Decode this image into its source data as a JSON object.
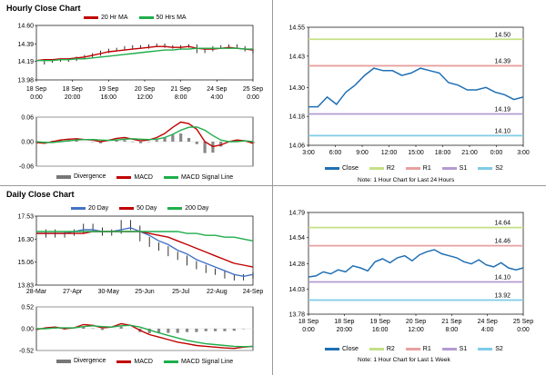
{
  "sections": {
    "hourly_title": "Hourly Close Chart",
    "daily_title": "Daily Close Chart"
  },
  "chart_data": [
    {
      "id": "hourly_price",
      "type": "line",
      "legend": [
        "20 Hr MA",
        "50 Hrs MA"
      ],
      "yticks": [
        "14.60",
        "14.39",
        "14.19",
        "13.98"
      ],
      "ylim": [
        13.98,
        14.6
      ],
      "xticks": [
        [
          "18 Sep",
          "0:00"
        ],
        [
          "18 Sep",
          "20:00"
        ],
        [
          "19 Sep",
          "16:00"
        ],
        [
          "20 Sep",
          "12:00"
        ],
        [
          "21 Sep",
          "8:00"
        ],
        [
          "24 Sep",
          "4:00"
        ],
        [
          "25 Sep",
          "0:00"
        ]
      ],
      "x": [
        0,
        6,
        12,
        18,
        24,
        30,
        36,
        42,
        48,
        54,
        60,
        66,
        72,
        78,
        84,
        90,
        96,
        102,
        108,
        114,
        120,
        126,
        132,
        138,
        144,
        150,
        156,
        162
      ],
      "series": [
        {
          "name": "Close",
          "color": "#000000",
          "values": [
            14.17,
            14.19,
            14.2,
            14.2,
            14.21,
            14.23,
            14.25,
            14.27,
            14.3,
            14.32,
            14.33,
            14.35,
            14.36,
            14.35,
            14.37,
            14.38,
            14.36,
            14.35,
            14.36,
            14.37,
            14.3,
            14.32,
            14.35,
            14.36,
            14.37,
            14.35,
            14.32,
            14.3
          ]
        },
        {
          "name": "20 Hr MA",
          "color": "#c00000",
          "values": [
            14.2,
            14.21,
            14.21,
            14.22,
            14.22,
            14.23,
            14.24,
            14.26,
            14.28,
            14.3,
            14.31,
            14.32,
            14.33,
            14.34,
            14.35,
            14.36,
            14.36,
            14.35,
            14.35,
            14.36,
            14.34,
            14.33,
            14.33,
            14.34,
            14.35,
            14.34,
            14.33,
            14.32
          ]
        },
        {
          "name": "50 Hrs MA",
          "color": "#1fae4b",
          "values": [
            14.2,
            14.2,
            14.2,
            14.21,
            14.21,
            14.22,
            14.22,
            14.23,
            14.24,
            14.25,
            14.26,
            14.27,
            14.28,
            14.29,
            14.3,
            14.31,
            14.32,
            14.32,
            14.33,
            14.33,
            14.34,
            14.34,
            14.34,
            14.34,
            14.34,
            14.34,
            14.33,
            14.33
          ]
        }
      ]
    },
    {
      "id": "hourly_macd",
      "type": "line",
      "legend": [
        "Divergence",
        "MACD",
        "MACD Signal Line"
      ],
      "yticks": [
        "0.06",
        "0.00",
        "-0.06"
      ],
      "ylim": [
        -0.06,
        0.06
      ],
      "x": [
        0,
        6,
        12,
        18,
        24,
        30,
        36,
        42,
        48,
        54,
        60,
        66,
        72,
        78,
        84,
        90,
        96,
        102,
        108,
        114,
        120,
        126,
        132,
        138,
        144,
        150,
        156,
        162
      ],
      "series": [
        {
          "name": "MACD",
          "color": "#c00000",
          "values": [
            -0.002,
            -0.004,
            0.0,
            0.004,
            0.006,
            0.007,
            0.005,
            0.004,
            0.0,
            0.003,
            0.008,
            0.01,
            0.006,
            0.002,
            0.004,
            0.01,
            0.02,
            0.035,
            0.048,
            0.044,
            0.03,
            0.0,
            -0.012,
            -0.008,
            0.0,
            0.004,
            0.002,
            -0.004
          ]
        },
        {
          "name": "MACD Signal Line",
          "color": "#1fae4b",
          "values": [
            0.0,
            -0.002,
            -0.002,
            0.0,
            0.002,
            0.004,
            0.005,
            0.005,
            0.004,
            0.003,
            0.004,
            0.006,
            0.007,
            0.006,
            0.005,
            0.006,
            0.01,
            0.018,
            0.028,
            0.035,
            0.036,
            0.028,
            0.015,
            0.004,
            0.0,
            0.0,
            0.002,
            0.0
          ]
        }
      ],
      "divergence": [
        -0.002,
        -0.002,
        0.002,
        0.004,
        0.004,
        0.003,
        0.0,
        -0.001,
        -0.004,
        0.0,
        0.004,
        0.004,
        -0.001,
        -0.004,
        -0.001,
        0.004,
        0.01,
        0.017,
        0.02,
        0.009,
        -0.006,
        -0.028,
        -0.027,
        -0.012,
        0.0,
        0.004,
        0.0,
        -0.004
      ]
    },
    {
      "id": "hourly_pivot",
      "type": "line",
      "yticks": [
        "14.55",
        "14.43",
        "14.30",
        "14.18",
        "14.06"
      ],
      "ylim": [
        14.06,
        14.55
      ],
      "xticks": [
        "3:00",
        "6:00",
        "9:00",
        "12:00",
        "15:00",
        "18:00",
        "21:00",
        "0:00",
        "3:00"
      ],
      "series": [
        {
          "name": "Close",
          "color": "#1f6fb4",
          "values": [
            14.22,
            14.22,
            14.26,
            14.23,
            14.28,
            14.31,
            14.35,
            14.38,
            14.37,
            14.37,
            14.35,
            14.36,
            14.38,
            14.37,
            14.36,
            14.32,
            14.31,
            14.29,
            14.29,
            14.3,
            14.28,
            14.27,
            14.25,
            14.26
          ]
        }
      ],
      "levels": [
        {
          "name": "R2",
          "value": 14.5,
          "label": "14.50",
          "color": "#c5e085"
        },
        {
          "name": "R1",
          "value": 14.39,
          "label": "14.39",
          "color": "#e9a0a0"
        },
        {
          "name": "S1",
          "value": 14.19,
          "label": "14.19",
          "color": "#b39bd0"
        },
        {
          "name": "S2",
          "value": 14.1,
          "label": "14.10",
          "color": "#7fcbe6"
        }
      ],
      "legend": [
        "Close",
        "R2",
        "R1",
        "S1",
        "S2"
      ],
      "note": "Note: 1 Hour Chart for Last 24 Hours"
    },
    {
      "id": "daily_price",
      "type": "line",
      "legend": [
        "20 Day",
        "50 Day",
        "200 Day"
      ],
      "yticks": [
        "17.53",
        "16.30",
        "15.06",
        "13.83"
      ],
      "ylim": [
        13.83,
        17.53
      ],
      "xticks": [
        "28-Mar",
        "27-Apr",
        "30-May",
        "25-Jun",
        "25-Jul",
        "22-Aug",
        "24-Sep"
      ],
      "x": [
        0,
        6,
        12,
        18,
        24,
        30,
        36,
        42,
        48,
        54,
        60,
        66,
        72,
        78,
        84,
        90,
        96,
        102,
        108,
        114,
        120,
        126,
        132,
        138
      ],
      "series": [
        {
          "name": "Close",
          "color": "#000000",
          "values": [
            16.5,
            16.7,
            16.5,
            16.6,
            16.7,
            17.0,
            16.8,
            16.6,
            16.7,
            17.2,
            16.9,
            16.3,
            16.0,
            15.8,
            15.5,
            15.3,
            15.0,
            14.8,
            14.6,
            14.5,
            14.3,
            14.2,
            14.3,
            14.4
          ]
        },
        {
          "name": "20 Day",
          "color": "#4472c4",
          "values": [
            16.6,
            16.6,
            16.6,
            16.6,
            16.7,
            16.8,
            16.8,
            16.7,
            16.7,
            16.8,
            16.9,
            16.7,
            16.5,
            16.2,
            16.0,
            15.7,
            15.5,
            15.2,
            15.0,
            14.8,
            14.6,
            14.4,
            14.3,
            14.4
          ]
        },
        {
          "name": "50 Day",
          "color": "#c00000",
          "values": [
            16.6,
            16.6,
            16.6,
            16.6,
            16.6,
            16.6,
            16.7,
            16.7,
            16.7,
            16.7,
            16.7,
            16.7,
            16.6,
            16.5,
            16.4,
            16.2,
            16.0,
            15.8,
            15.6,
            15.4,
            15.2,
            15.0,
            14.9,
            14.8
          ]
        },
        {
          "name": "200 Day",
          "color": "#1fae4b",
          "values": [
            16.7,
            16.7,
            16.7,
            16.7,
            16.7,
            16.7,
            16.7,
            16.7,
            16.7,
            16.7,
            16.7,
            16.7,
            16.7,
            16.7,
            16.7,
            16.7,
            16.6,
            16.6,
            16.5,
            16.5,
            16.4,
            16.4,
            16.3,
            16.2
          ]
        }
      ]
    },
    {
      "id": "daily_macd",
      "type": "line",
      "legend": [
        "Divergence",
        "MACD",
        "MACD Signal Line"
      ],
      "yticks": [
        "0.52",
        "0.00",
        "-0.52"
      ],
      "ylim": [
        -0.52,
        0.52
      ],
      "x": [
        0,
        6,
        12,
        18,
        24,
        30,
        36,
        42,
        48,
        54,
        60,
        66,
        72,
        78,
        84,
        90,
        96,
        102,
        108,
        114,
        120,
        126,
        132,
        138
      ],
      "series": [
        {
          "name": "MACD",
          "color": "#c00000",
          "values": [
            -0.02,
            0.02,
            0.04,
            0.0,
            0.02,
            0.1,
            0.08,
            0.02,
            0.04,
            0.12,
            0.08,
            -0.04,
            -0.14,
            -0.2,
            -0.26,
            -0.32,
            -0.36,
            -0.4,
            -0.42,
            -0.44,
            -0.46,
            -0.47,
            -0.44,
            -0.42
          ]
        },
        {
          "name": "MACD Signal Line",
          "color": "#1fae4b",
          "values": [
            0.0,
            0.0,
            0.02,
            0.02,
            0.02,
            0.05,
            0.07,
            0.05,
            0.04,
            0.07,
            0.08,
            0.04,
            -0.03,
            -0.1,
            -0.16,
            -0.22,
            -0.28,
            -0.32,
            -0.36,
            -0.38,
            -0.4,
            -0.42,
            -0.43,
            -0.42
          ]
        }
      ],
      "divergence": [
        -0.02,
        0.02,
        0.02,
        -0.02,
        0.0,
        0.05,
        0.01,
        -0.03,
        0.0,
        0.05,
        0.0,
        -0.08,
        -0.11,
        -0.1,
        -0.1,
        -0.1,
        -0.08,
        -0.08,
        -0.06,
        -0.06,
        -0.06,
        -0.05,
        -0.01,
        0.0
      ]
    },
    {
      "id": "daily_pivot",
      "type": "line",
      "yticks": [
        "14.79",
        "14.54",
        "14.28",
        "14.03",
        "13.78"
      ],
      "ylim": [
        13.78,
        14.79
      ],
      "xticks": [
        [
          "18 Sep",
          "0:00"
        ],
        [
          "18 Sep",
          "20:00"
        ],
        [
          "19 Sep",
          "16:00"
        ],
        [
          "20 Sep",
          "12:00"
        ],
        [
          "21 Sep",
          "8:00"
        ],
        [
          "24 Sep",
          "4:00"
        ],
        [
          "25 Sep",
          "0:00"
        ]
      ],
      "series": [
        {
          "name": "Close",
          "color": "#1f6fb4",
          "values": [
            14.15,
            14.16,
            14.2,
            14.18,
            14.22,
            14.2,
            14.26,
            14.24,
            14.21,
            14.3,
            14.33,
            14.29,
            14.34,
            14.36,
            14.31,
            14.37,
            14.4,
            14.42,
            14.38,
            14.36,
            14.34,
            14.3,
            14.28,
            14.32,
            14.27,
            14.25,
            14.29,
            14.24,
            14.22,
            14.24
          ]
        }
      ],
      "levels": [
        {
          "name": "R2",
          "value": 14.64,
          "label": "14.64",
          "color": "#c5e085"
        },
        {
          "name": "R1",
          "value": 14.46,
          "label": "14.46",
          "color": "#e9a0a0"
        },
        {
          "name": "S1",
          "value": 14.1,
          "label": "14.10",
          "color": "#b39bd0"
        },
        {
          "name": "S2",
          "value": 13.92,
          "label": "13.92",
          "color": "#7fcbe6"
        }
      ],
      "legend": [
        "Close",
        "R2",
        "R1",
        "S1",
        "S2"
      ],
      "note": "Note: 1 Hour Chart for Last 1 Week"
    }
  ]
}
